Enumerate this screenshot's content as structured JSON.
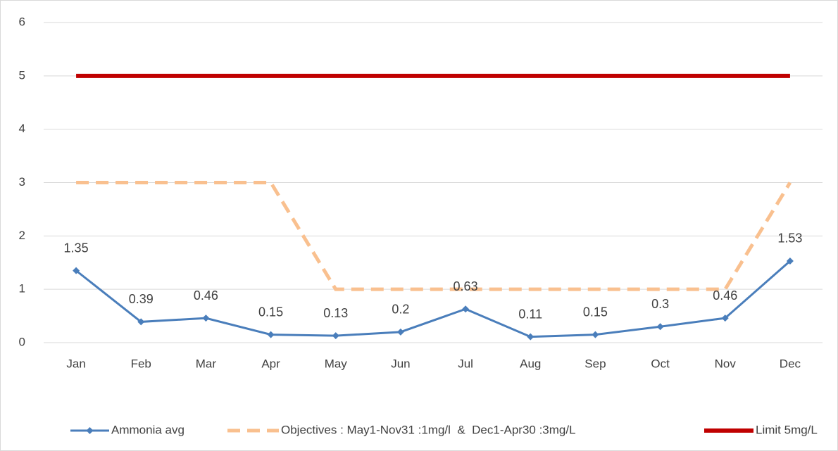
{
  "chart_data": {
    "type": "line",
    "categories": [
      "Jan",
      "Feb",
      "Mar",
      "Apr",
      "May",
      "Jun",
      "Jul",
      "Aug",
      "Sep",
      "Oct",
      "Nov",
      "Dec"
    ],
    "series": [
      {
        "name": "Ammonia avg",
        "color": "#4a7ebb",
        "values": [
          1.35,
          0.39,
          0.46,
          0.15,
          0.13,
          0.2,
          0.63,
          0.11,
          0.15,
          0.3,
          0.46,
          1.53
        ]
      },
      {
        "name": "Objectives : May1-Nov31 :1mg/l  &  Dec1-Apr30 :3mg/L",
        "color": "#f9c08f",
        "values": [
          3,
          3,
          3,
          3,
          1,
          1,
          1,
          1,
          1,
          1,
          1,
          3
        ]
      },
      {
        "name": "Limit 5mg/L",
        "color": "#c00000",
        "values": [
          5,
          5,
          5,
          5,
          5,
          5,
          5,
          5,
          5,
          5,
          5,
          5
        ]
      }
    ],
    "ylim": [
      0,
      6
    ],
    "yticks": [
      0,
      1,
      2,
      3,
      4,
      5,
      6
    ],
    "grid": true,
    "legend": "bottom"
  }
}
